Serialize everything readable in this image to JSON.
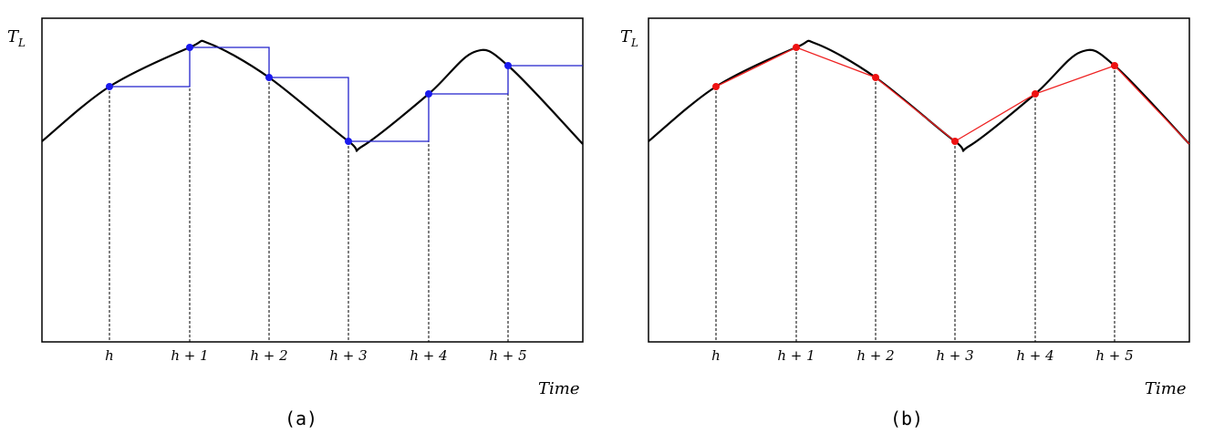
{
  "panels": [
    {
      "label": "(a)",
      "ylabel": "T",
      "ylabel_sub": "L",
      "xlabel": "Time",
      "ticks": [
        "h",
        "h + 1",
        "h + 2",
        "h + 3",
        "h + 4",
        "h + 5"
      ],
      "method": "step",
      "marker_color": "#1a1aee",
      "line_color": "#2222cc"
    },
    {
      "label": "(b)",
      "ylabel": "T",
      "ylabel_sub": "L",
      "xlabel": "Time",
      "ticks": [
        "h",
        "h + 1",
        "h + 2",
        "h + 3",
        "h + 4",
        "h + 5"
      ],
      "method": "linear",
      "marker_color": "#ee1111",
      "line_color": "#ee2222"
    }
  ]
}
